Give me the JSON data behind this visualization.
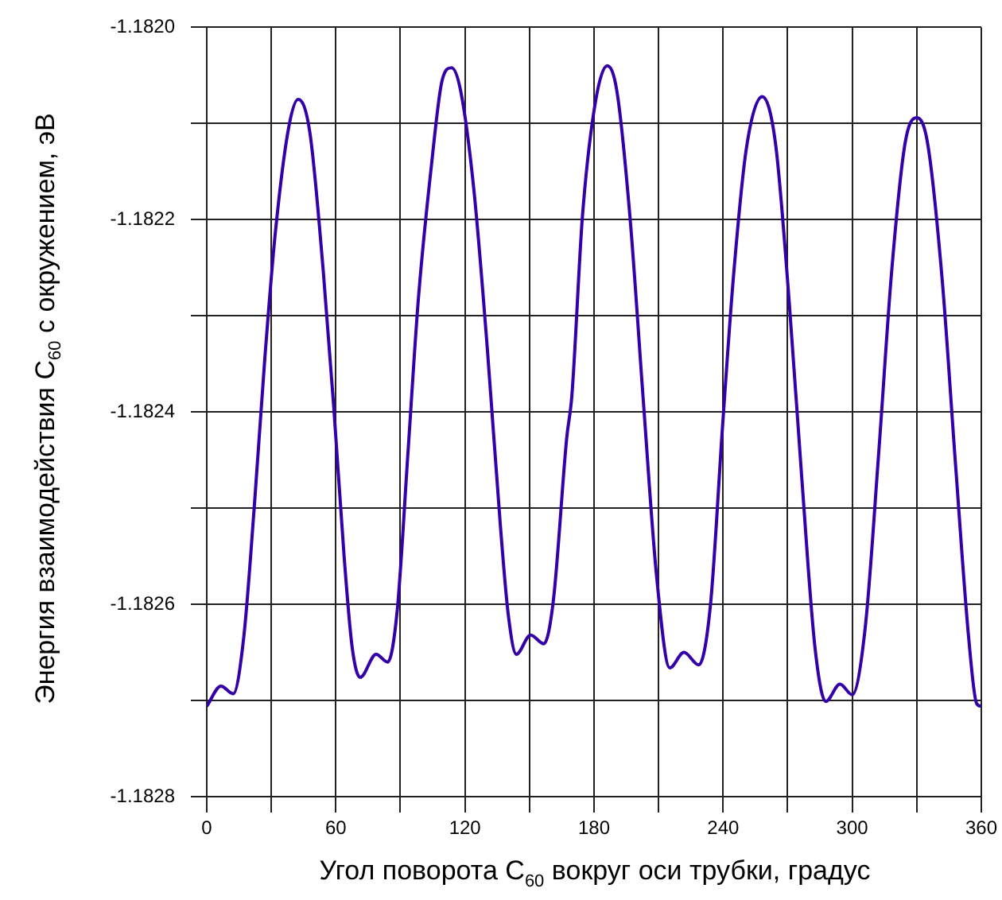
{
  "chart_data": {
    "type": "line",
    "xlabel": "Угол поворота C$_{60}$ вокруг оси трубки, градус",
    "ylabel": "Энергия взаимодействия C$_{60}$ с окружением, эВ",
    "x": [
      0,
      6.6,
      12.3,
      17.2,
      22.1,
      27.0,
      31.9,
      38.1,
      42.5,
      47.9,
      54.1,
      59.0,
      63.9,
      67.6,
      71.3,
      78.7,
      84.1,
      88.5,
      93.5,
      98.3,
      104.5,
      109.4,
      113.8,
      118.0,
      124.2,
      130.4,
      136.5,
      140.2,
      143.9,
      150.5,
      156.7,
      161.1,
      167.3,
      169.7,
      174.6,
      180.7,
      186.1,
      190.6,
      196.7,
      202.9,
      209.0,
      215.2,
      221.8,
      228.7,
      234.1,
      239.7,
      244.7,
      250.8,
      258.2,
      264.3,
      270.5,
      276.6,
      282.7,
      287.7,
      294.3,
      300.0,
      306.1,
      312.3,
      318.4,
      324.6,
      330.0,
      335.0,
      341.8,
      348.0,
      354.1,
      357.8,
      360
    ],
    "series": [
      {
        "color": "#3300aa",
        "values": [
          -1.182706,
          -1.182685,
          -1.182693,
          -1.182634,
          -1.182498,
          -1.182344,
          -1.182213,
          -1.182104,
          -1.182075,
          -1.182109,
          -1.182252,
          -1.182394,
          -1.182552,
          -1.182645,
          -1.182676,
          -1.182652,
          -1.18266,
          -1.182607,
          -1.182443,
          -1.182284,
          -1.182142,
          -1.182055,
          -1.182042,
          -1.182066,
          -1.18217,
          -1.182334,
          -1.182519,
          -1.182612,
          -1.182652,
          -1.182632,
          -1.182641,
          -1.182596,
          -1.182427,
          -1.182383,
          -1.182197,
          -1.182077,
          -1.18204,
          -1.182066,
          -1.182197,
          -1.182388,
          -1.182569,
          -1.182666,
          -1.18265,
          -1.182663,
          -1.182601,
          -1.182416,
          -1.182262,
          -1.182126,
          -1.182072,
          -1.18212,
          -1.182279,
          -1.18247,
          -1.182645,
          -1.182701,
          -1.182683,
          -1.182694,
          -1.182623,
          -1.182443,
          -1.182252,
          -1.18212,
          -1.182094,
          -1.18212,
          -1.182262,
          -1.182454,
          -1.182634,
          -1.182703,
          -1.182706
        ]
      }
    ],
    "xlim": [
      0,
      360
    ],
    "ylim": [
      -1.1828,
      -1.182
    ],
    "xticks": [
      0,
      {
        "value": 30,
        "label": null
      },
      60,
      {
        "value": 90,
        "label": null
      },
      120,
      {
        "value": 150,
        "label": null
      },
      180,
      {
        "value": 210,
        "label": null
      },
      240,
      {
        "value": 270,
        "label": null
      },
      300,
      {
        "value": 330,
        "label": null
      },
      360
    ],
    "yticks": [
      {
        "value": -1.1828,
        "label": "-1.1828"
      },
      {
        "value": -1.1827,
        "label": null
      },
      {
        "value": -1.1826,
        "label": "-1.1826"
      },
      {
        "value": -1.1825,
        "label": null
      },
      {
        "value": -1.1824,
        "label": "-1.1824"
      },
      {
        "value": -1.1823,
        "label": null
      },
      {
        "value": -1.1822,
        "label": "-1.1822"
      },
      {
        "value": -1.1821,
        "label": null
      },
      {
        "value": -1.182,
        "label": "-1.1820"
      }
    ],
    "grid": true,
    "legend": false,
    "marker": "none",
    "line_style": "solid"
  }
}
